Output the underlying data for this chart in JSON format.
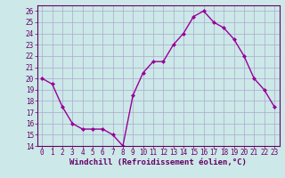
{
  "x": [
    0,
    1,
    2,
    3,
    4,
    5,
    6,
    7,
    8,
    9,
    10,
    11,
    12,
    13,
    14,
    15,
    16,
    17,
    18,
    19,
    20,
    21,
    22,
    23
  ],
  "y": [
    20.0,
    19.5,
    17.5,
    16.0,
    15.5,
    15.5,
    15.5,
    15.0,
    14.0,
    18.5,
    20.5,
    21.5,
    21.5,
    23.0,
    24.0,
    25.5,
    26.0,
    25.0,
    24.5,
    23.5,
    22.0,
    20.0,
    19.0,
    17.5
  ],
  "line_color": "#990099",
  "marker": "D",
  "marker_size": 2,
  "bg_color": "#cce8e8",
  "grid_color": "#aaaacc",
  "xlabel": "Windchill (Refroidissement éolien,°C)",
  "xlabel_color": "#660066",
  "xlim": [
    -0.5,
    23.5
  ],
  "ylim": [
    14,
    26.5
  ],
  "yticks": [
    14,
    15,
    16,
    17,
    18,
    19,
    20,
    21,
    22,
    23,
    24,
    25,
    26
  ],
  "xticks": [
    0,
    1,
    2,
    3,
    4,
    5,
    6,
    7,
    8,
    9,
    10,
    11,
    12,
    13,
    14,
    15,
    16,
    17,
    18,
    19,
    20,
    21,
    22,
    23
  ],
  "tick_color": "#660066",
  "tick_fontsize": 5.5,
  "xlabel_fontsize": 6.5,
  "line_width": 1.0,
  "spine_color": "#660066"
}
